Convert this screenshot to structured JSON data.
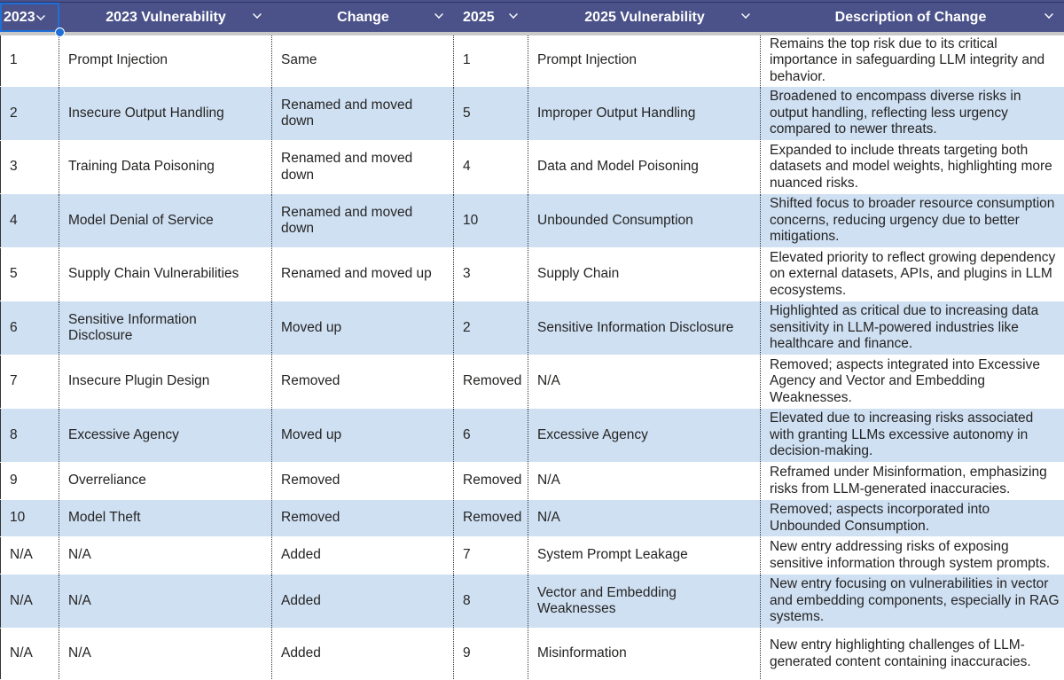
{
  "columns": [
    "2023",
    "2023 Vulnerability",
    "Change",
    "2025",
    "2025 Vulnerability",
    "Description of Change"
  ],
  "colors": {
    "header": "#4a5289",
    "row_alt": "#cfe0f3",
    "selection": "#1f6fd6"
  },
  "rows": [
    [
      "1",
      "Prompt Injection",
      "Same",
      "1",
      "Prompt Injection",
      "Remains the top risk due to its critical importance in safeguarding LLM integrity and behavior."
    ],
    [
      "2",
      "Insecure Output Handling",
      "Renamed and moved down",
      "5",
      "Improper Output Handling",
      "Broadened to encompass diverse risks in output handling, reflecting less urgency compared to newer threats."
    ],
    [
      "3",
      "Training Data Poisoning",
      "Renamed and moved down",
      "4",
      "Data and Model Poisoning",
      "Expanded to include threats targeting both datasets and model weights, highlighting more nuanced risks."
    ],
    [
      "4",
      "Model Denial of Service",
      "Renamed and moved down",
      "10",
      "Unbounded Consumption",
      "Shifted focus to broader resource consumption concerns, reducing urgency due to better mitigations."
    ],
    [
      "5",
      "Supply Chain Vulnerabilities",
      "Renamed and moved up",
      "3",
      "Supply Chain",
      "Elevated priority to reflect growing dependency on external datasets, APIs, and plugins in LLM ecosystems."
    ],
    [
      "6",
      "Sensitive Information Disclosure",
      "Moved up",
      "2",
      "Sensitive Information Disclosure",
      "Highlighted as critical due to increasing data sensitivity in LLM-powered industries like healthcare and finance."
    ],
    [
      "7",
      "Insecure Plugin Design",
      "Removed",
      "Removed",
      "N/A",
      "Removed; aspects integrated into Excessive Agency and Vector and Embedding Weaknesses."
    ],
    [
      "8",
      "Excessive Agency",
      "Moved up",
      "6",
      "Excessive Agency",
      "Elevated due to increasing risks associated with granting LLMs excessive autonomy in decision-making."
    ],
    [
      "9",
      "Overreliance",
      "Removed",
      "Removed",
      "N/A",
      "Reframed under Misinformation, emphasizing risks from LLM-generated inaccuracies."
    ],
    [
      "10",
      "Model Theft",
      "Removed",
      "Removed",
      "N/A",
      "Removed; aspects incorporated into Unbounded Consumption."
    ],
    [
      "N/A",
      "N/A",
      "Added",
      "7",
      "System Prompt Leakage",
      "New entry addressing risks of exposing sensitive information through system prompts."
    ],
    [
      "N/A",
      "N/A",
      "Added",
      "8",
      "Vector and Embedding Weaknesses",
      "New entry focusing on vulnerabilities in vector and embedding components, especially in RAG systems."
    ],
    [
      "N/A",
      "N/A",
      "Added",
      "9",
      "Misinformation",
      "New entry highlighting challenges of LLM-generated content containing inaccuracies."
    ]
  ]
}
